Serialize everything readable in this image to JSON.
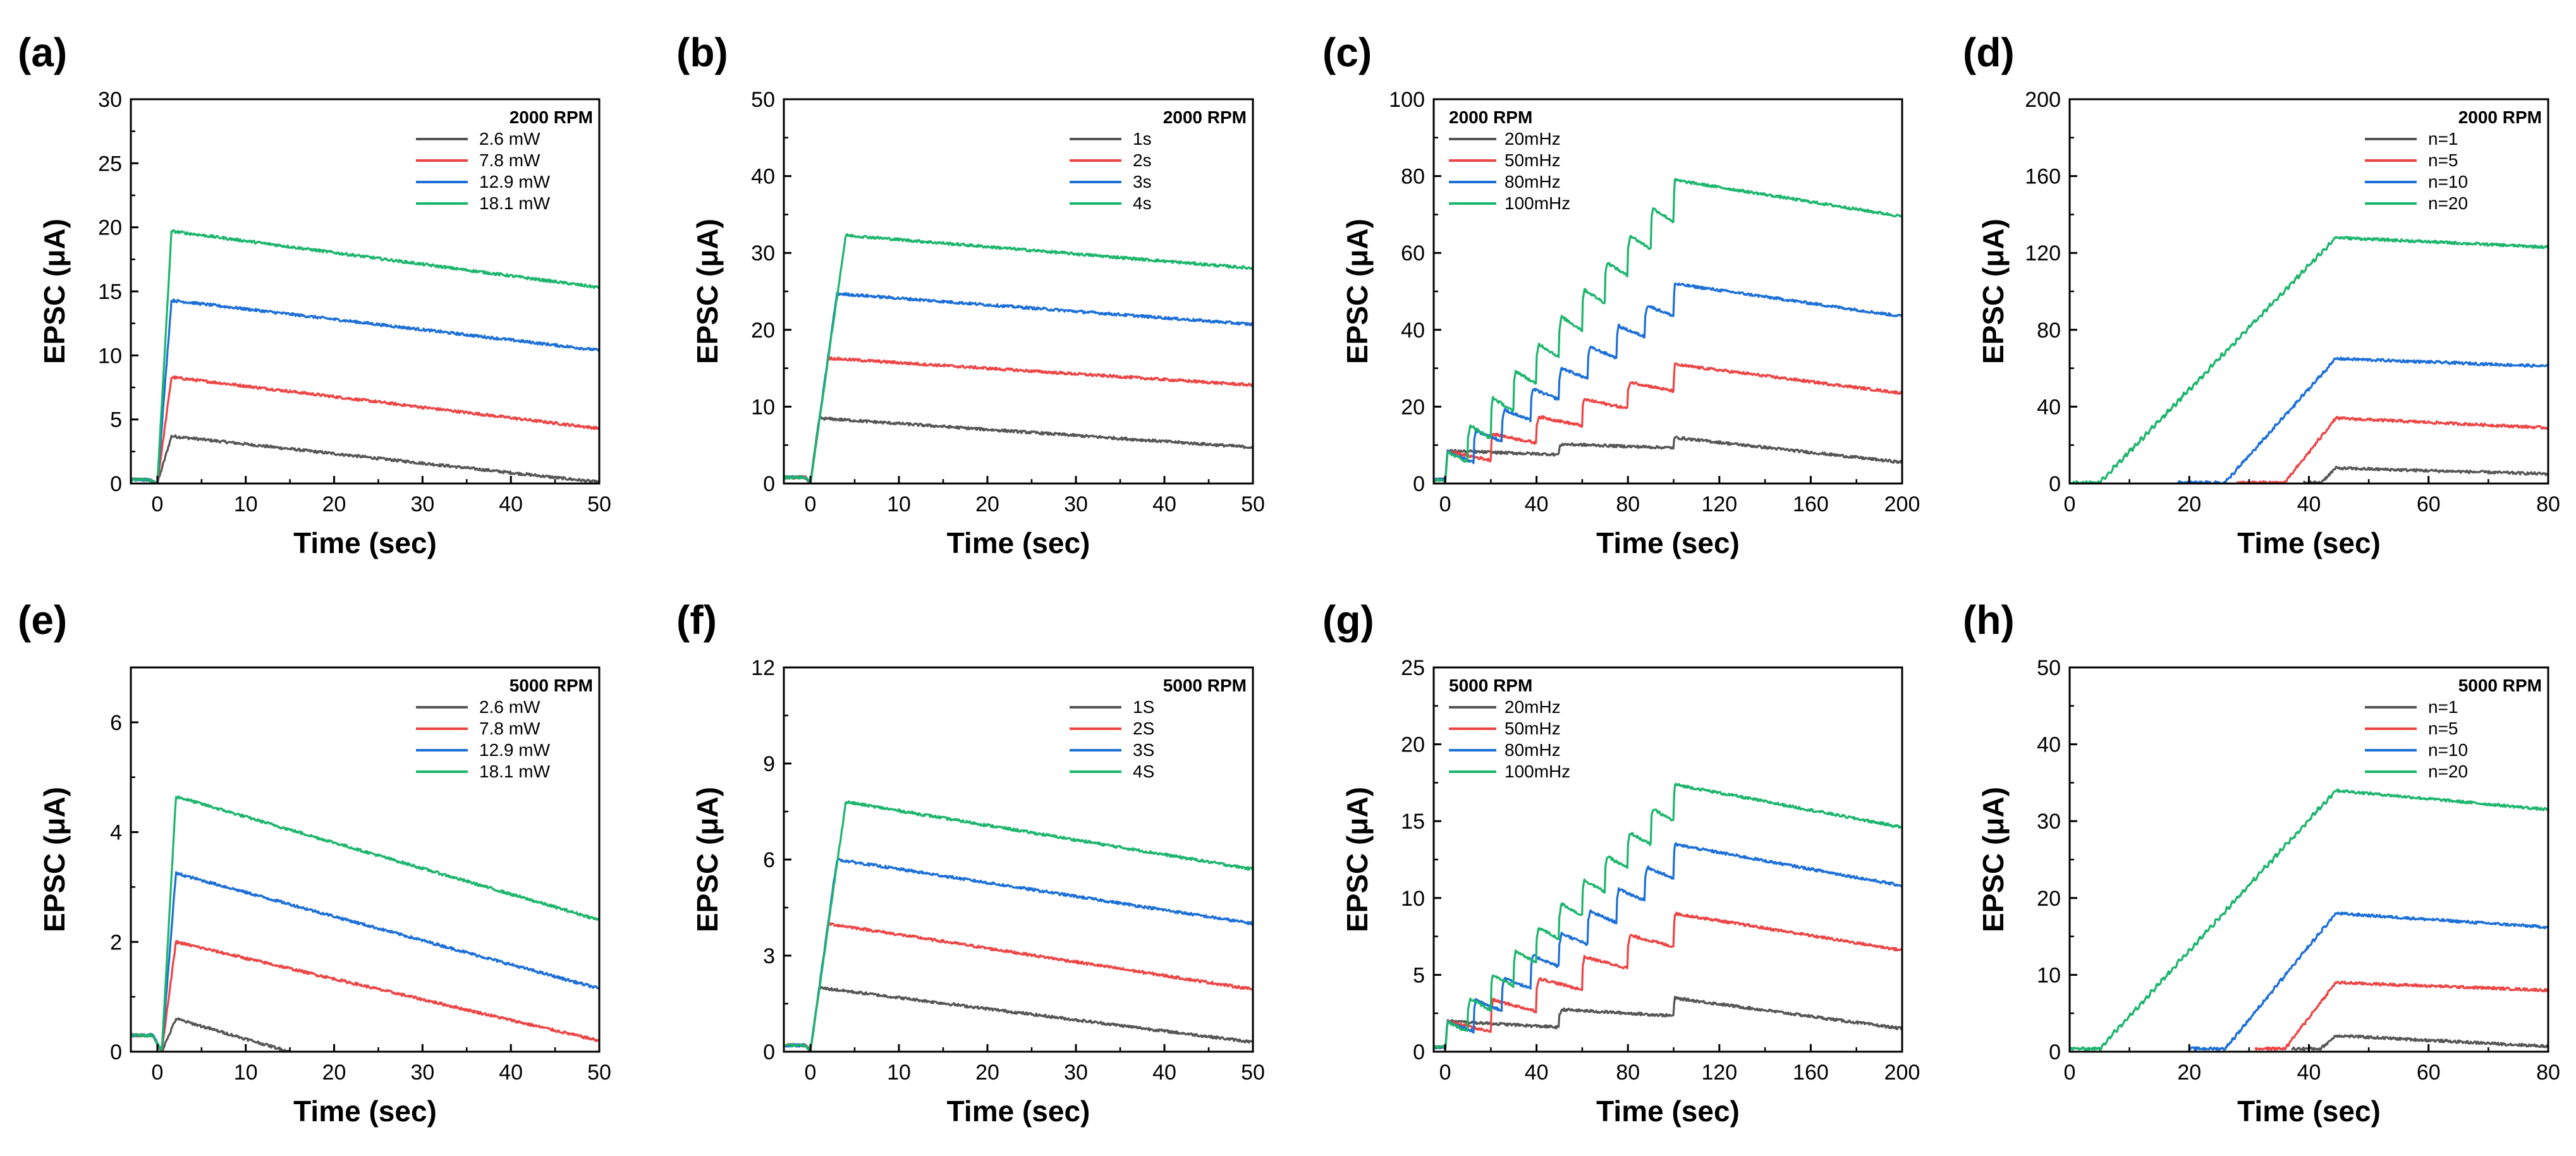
{
  "chart_data": [
    {
      "panel": "(a)",
      "type": "line",
      "title": "",
      "xlabel": "Time (sec)",
      "ylabel": "EPSC (μA)",
      "xlim": [
        -3,
        50
      ],
      "ylim": [
        0,
        30
      ],
      "xticks": [
        "0",
        "10",
        "20",
        "30",
        "40",
        "50"
      ],
      "yticks": [
        "0",
        "5",
        "10",
        "15",
        "20",
        "25",
        "30"
      ],
      "legend_title": "2000 RPM",
      "legend_position": "top-right",
      "mode": "single_pulse",
      "pulse_start": 0,
      "baseline": 0.3,
      "series": [
        {
          "name": "2.6 mW",
          "color": "#555555",
          "width": 1.6,
          "peak": 3.7,
          "end": 0.1
        },
        {
          "name": "7.8 mW",
          "color": "#ec4444",
          "width": 1.6,
          "peak": 8.3,
          "end": 4.3
        },
        {
          "name": "12.9 mW",
          "color": "#1c6fd6",
          "width": 1.6,
          "peak": 14.3,
          "end": 10.4
        },
        {
          "name": "18.1 mW",
          "color": "#1cb56c",
          "width": 1.6,
          "peak": 19.7,
          "end": 15.3
        }
      ]
    },
    {
      "panel": "(b)",
      "type": "line",
      "title": "",
      "xlabel": "Time (sec)",
      "ylabel": "EPSC (μA)",
      "xlim": [
        -3,
        50
      ],
      "ylim": [
        0,
        50
      ],
      "xticks": [
        "0",
        "10",
        "20",
        "30",
        "40",
        "50"
      ],
      "yticks": [
        "0",
        "10",
        "20",
        "30",
        "40",
        "50"
      ],
      "legend_title": "2000 RPM",
      "legend_position": "top-right",
      "mode": "duration_pulse",
      "pulse_start": 0,
      "baseline": 0.8,
      "series": [
        {
          "name": "1s",
          "color": "#555555",
          "width": 1,
          "peak": 8.5,
          "end": 4.7
        },
        {
          "name": "2s",
          "color": "#ec4444",
          "width": 2,
          "peak": 16.3,
          "end": 12.8
        },
        {
          "name": "3s",
          "color": "#1c6fd6",
          "width": 3,
          "peak": 24.7,
          "end": 20.7
        },
        {
          "name": "4s",
          "color": "#1cb56c",
          "width": 4,
          "peak": 32.3,
          "end": 28.0
        }
      ]
    },
    {
      "panel": "(c)",
      "type": "line",
      "title": "",
      "xlabel": "Time (sec)",
      "ylabel": "EPSC (μA)",
      "xlim": [
        -5,
        200
      ],
      "ylim": [
        0,
        100
      ],
      "xticks": [
        "0",
        "40",
        "80",
        "120",
        "160",
        "200"
      ],
      "yticks": [
        "0",
        "20",
        "40",
        "60",
        "80",
        "100"
      ],
      "legend_title": "2000 RPM",
      "legend_position": "top-left",
      "mode": "pulse_train",
      "t_end": 100,
      "baseline": 1.0,
      "first": 8.5,
      "series": [
        {
          "name": "20mHz",
          "color": "#555555",
          "period": 50,
          "peak": 12.0,
          "end": 5.5
        },
        {
          "name": "50mHz",
          "color": "#ec4444",
          "period": 20,
          "peak": 31.0,
          "end": 23.5
        },
        {
          "name": "80mHz",
          "color": "#1c6fd6",
          "period": 12.5,
          "peak": 52.0,
          "end": 43.5
        },
        {
          "name": "100mHz",
          "color": "#1cb56c",
          "period": 10,
          "peak": 79.0,
          "end": 69.5
        }
      ]
    },
    {
      "panel": "(d)",
      "type": "line",
      "title": "",
      "xlabel": "Time (sec)",
      "ylabel": "EPSC (μA)",
      "xlim": [
        0,
        80
      ],
      "ylim": [
        0,
        200
      ],
      "xticks": [
        "0",
        "20",
        "40",
        "60",
        "80"
      ],
      "yticks": [
        "0",
        "40",
        "80",
        "120",
        "160",
        "200"
      ],
      "legend_title": "2000 RPM",
      "legend_position": "top-right",
      "mode": "pulse_number",
      "t_end": 44.5,
      "baseline": 0.5,
      "series": [
        {
          "name": "n=1",
          "color": "#555555",
          "t_start": 42,
          "t_peak": 44.5,
          "peak": 8.0,
          "end": 5.0,
          "visible_from": 39
        },
        {
          "name": "n=5",
          "color": "#ec4444",
          "t_start": 36,
          "t_peak": 44.5,
          "peak": 34.0,
          "end": 29.0,
          "visible_from": 28
        },
        {
          "name": "n=10",
          "color": "#1c6fd6",
          "t_start": 26,
          "t_peak": 44.5,
          "peak": 65.0,
          "end": 61.0,
          "visible_from": 18
        },
        {
          "name": "n=20",
          "color": "#1cb56c",
          "t_start": 5,
          "t_peak": 44.5,
          "peak": 128.0,
          "end": 123.0,
          "visible_from": 0
        }
      ]
    },
    {
      "panel": "(e)",
      "type": "line",
      "title": "",
      "xlabel": "Time (sec)",
      "ylabel": "EPSC (μA)",
      "xlim": [
        -3,
        50
      ],
      "ylim": [
        0,
        7
      ],
      "xticks": [
        "0",
        "10",
        "20",
        "30",
        "40",
        "50"
      ],
      "yticks": [
        "0",
        "2",
        "4",
        "6"
      ],
      "legend_title": "5000 RPM",
      "legend_position": "top-right",
      "mode": "single_pulse",
      "pulse_start": 0.5,
      "baseline": 0.3,
      "series": [
        {
          "name": "2.6 mW",
          "color": "#555555",
          "width": 1.6,
          "peak": 0.6,
          "end": 0.0,
          "zero_at": 15
        },
        {
          "name": "7.8 mW",
          "color": "#ec4444",
          "width": 1.6,
          "peak": 2.0,
          "end": 0.2
        },
        {
          "name": "12.9 mW",
          "color": "#1c6fd6",
          "width": 1.6,
          "peak": 3.25,
          "end": 1.15
        },
        {
          "name": "18.1 mW",
          "color": "#1cb56c",
          "width": 1.6,
          "peak": 4.65,
          "end": 2.4
        }
      ]
    },
    {
      "panel": "(f)",
      "type": "line",
      "title": "",
      "xlabel": "Time (sec)",
      "ylabel": "EPSC (μA)",
      "xlim": [
        -3,
        50
      ],
      "ylim": [
        0,
        12
      ],
      "xticks": [
        "0",
        "10",
        "20",
        "30",
        "40",
        "50"
      ],
      "yticks": [
        "0",
        "3",
        "6",
        "9",
        "12"
      ],
      "legend_title": "5000 RPM",
      "legend_position": "top-right",
      "mode": "duration_pulse",
      "pulse_start": 0,
      "baseline": 0.2,
      "series": [
        {
          "name": "1S",
          "color": "#555555",
          "width": 1,
          "peak": 2.0,
          "end": 0.3,
          "start_delay": 3
        },
        {
          "name": "2S",
          "color": "#ec4444",
          "width": 2,
          "peak": 4.0,
          "end": 1.95,
          "start_delay": 2
        },
        {
          "name": "3S",
          "color": "#1c6fd6",
          "width": 3,
          "peak": 6.0,
          "end": 4.0,
          "start_delay": 1
        },
        {
          "name": "4S",
          "color": "#1cb56c",
          "width": 4,
          "peak": 7.8,
          "end": 5.7,
          "start_delay": 0
        }
      ]
    },
    {
      "panel": "(g)",
      "type": "line",
      "title": "",
      "xlabel": "Time (sec)",
      "ylabel": "EPSC (μA)",
      "xlim": [
        -5,
        200
      ],
      "ylim": [
        0,
        25
      ],
      "xticks": [
        "0",
        "40",
        "80",
        "120",
        "160",
        "200"
      ],
      "yticks": [
        "0",
        "5",
        "10",
        "15",
        "20",
        "25"
      ],
      "legend_title": "5000 RPM",
      "legend_position": "top-left",
      "mode": "pulse_train",
      "t_end": 100,
      "baseline": 0.3,
      "first": 2.0,
      "series": [
        {
          "name": "20mHz",
          "color": "#555555",
          "period": 50,
          "peak": 3.5,
          "end": 1.5
        },
        {
          "name": "50mHz",
          "color": "#ec4444",
          "period": 20,
          "peak": 9.0,
          "end": 6.6
        },
        {
          "name": "80mHz",
          "color": "#1c6fd6",
          "period": 12.5,
          "peak": 13.5,
          "end": 10.8
        },
        {
          "name": "100mHz",
          "color": "#1cb56c",
          "period": 10,
          "peak": 17.4,
          "end": 14.6
        }
      ]
    },
    {
      "panel": "(h)",
      "type": "line",
      "title": "",
      "xlabel": "Time (sec)",
      "ylabel": "EPSC (μA)",
      "xlim": [
        0,
        80
      ],
      "ylim": [
        0,
        50
      ],
      "xticks": [
        "0",
        "20",
        "40",
        "60",
        "80"
      ],
      "yticks": [
        "0",
        "10",
        "20",
        "30",
        "40",
        "50"
      ],
      "legend_title": "5000 RPM",
      "legend_position": "top-right",
      "mode": "pulse_number",
      "t_end": 44.5,
      "baseline": 0.4,
      "series": [
        {
          "name": "n=1",
          "color": "#555555",
          "t_start": 42,
          "t_peak": 44.5,
          "peak": 2.1,
          "end": 0.7,
          "visible_from": 37
        },
        {
          "name": "n=5",
          "color": "#ec4444",
          "t_start": 36,
          "t_peak": 44.5,
          "peak": 9.0,
          "end": 8.0,
          "visible_from": 31
        },
        {
          "name": "n=10",
          "color": "#1c6fd6",
          "t_start": 26,
          "t_peak": 44.5,
          "peak": 18.0,
          "end": 16.2,
          "visible_from": 20
        },
        {
          "name": "n=20",
          "color": "#1cb56c",
          "t_start": 5,
          "t_peak": 44.5,
          "peak": 34.0,
          "end": 31.5,
          "visible_from": 0
        }
      ]
    }
  ]
}
